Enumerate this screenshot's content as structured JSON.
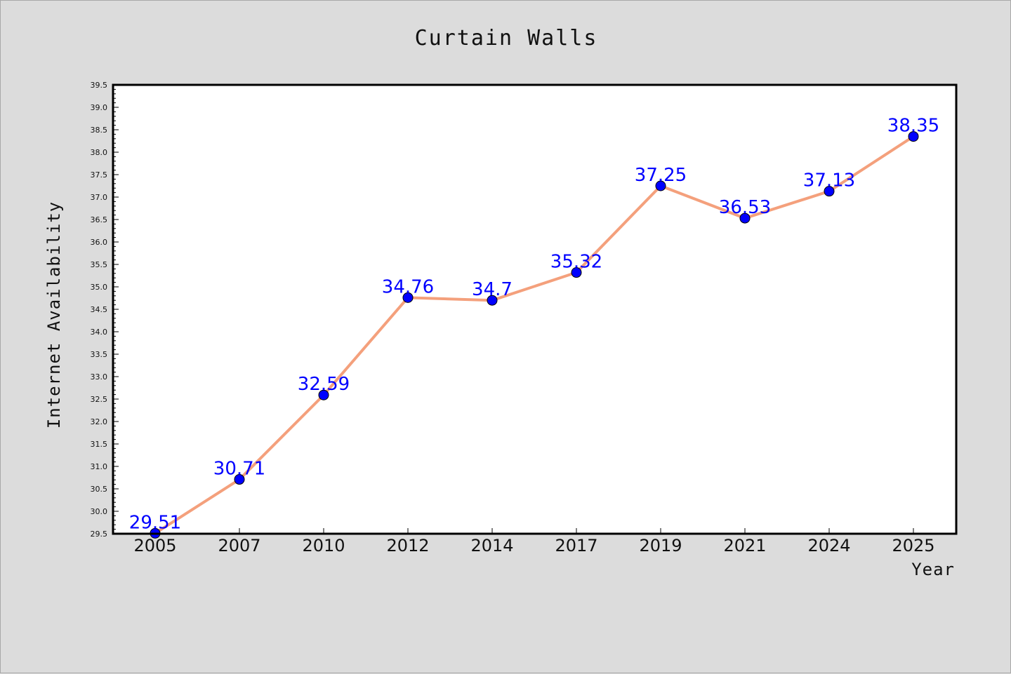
{
  "chart_data": {
    "type": "line",
    "title": "Curtain Walls",
    "xlabel": "Year",
    "ylabel": "Internet Availability",
    "categories": [
      "2005",
      "2007",
      "2010",
      "2012",
      "2014",
      "2017",
      "2019",
      "2021",
      "2024",
      "2025"
    ],
    "values": [
      29.51,
      30.71,
      32.59,
      34.76,
      34.7,
      35.32,
      37.25,
      36.53,
      37.13,
      38.35
    ],
    "data_labels": [
      "29.51",
      "30.71",
      "32.59",
      "34.76",
      "34.7",
      "35.32",
      "37.25",
      "36.53",
      "37.13",
      "38.35"
    ],
    "ylim": [
      29.5,
      39.5
    ],
    "yticks": [
      "29.5",
      "30.0",
      "30.5",
      "31.0",
      "31.5",
      "32.0",
      "32.5",
      "33.0",
      "33.5",
      "34.0",
      "34.5",
      "35.0",
      "35.5",
      "36.0",
      "36.5",
      "37.0",
      "37.5",
      "38.0",
      "38.5",
      "39.0",
      "39.5"
    ],
    "grid": false,
    "legend": "none",
    "colors": {
      "line": "#f4a07c",
      "marker": "#0000ff",
      "data_label": "#0000ff",
      "background": "#dcdcdc",
      "plot_background": "#ffffff"
    }
  }
}
